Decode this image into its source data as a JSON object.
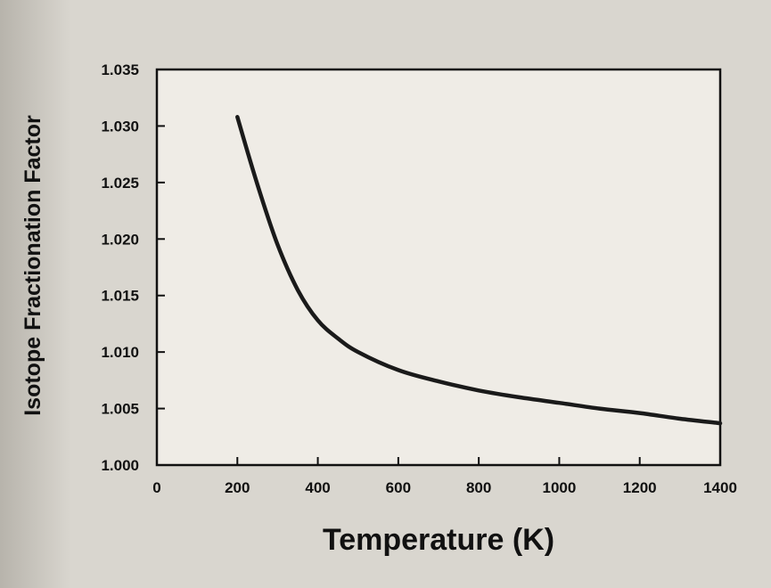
{
  "chart_data": {
    "type": "line",
    "title": "",
    "xlabel": "Temperature  (K)",
    "ylabel": "Isotope  Fractionation  Factor",
    "xlim": [
      0,
      1400
    ],
    "ylim": [
      1.0,
      1.035
    ],
    "x_ticks": [
      "0",
      "200",
      "400",
      "600",
      "800",
      "1000",
      "1200",
      "1400"
    ],
    "x_tick_values": [
      0,
      200,
      400,
      600,
      800,
      1000,
      1200,
      1400
    ],
    "y_ticks": [
      "1.000",
      "1.005",
      "1.010",
      "1.015",
      "1.020",
      "1.025",
      "1.030",
      "1.035"
    ],
    "y_tick_values": [
      1.0,
      1.005,
      1.01,
      1.015,
      1.02,
      1.025,
      1.03,
      1.035
    ],
    "grid": false,
    "series": [
      {
        "color": "#1a1a1a",
        "x": [
          200,
          250,
          300,
          350,
          400,
          450,
          500,
          600,
          700,
          800,
          900,
          1000,
          1100,
          1200,
          1300,
          1400
        ],
        "y": [
          1.0308,
          1.0248,
          1.0195,
          1.0155,
          1.0128,
          1.0112,
          1.01,
          1.0084,
          1.0074,
          1.0066,
          1.006,
          1.0055,
          1.005,
          1.0046,
          1.0041,
          1.0037
        ]
      }
    ]
  }
}
